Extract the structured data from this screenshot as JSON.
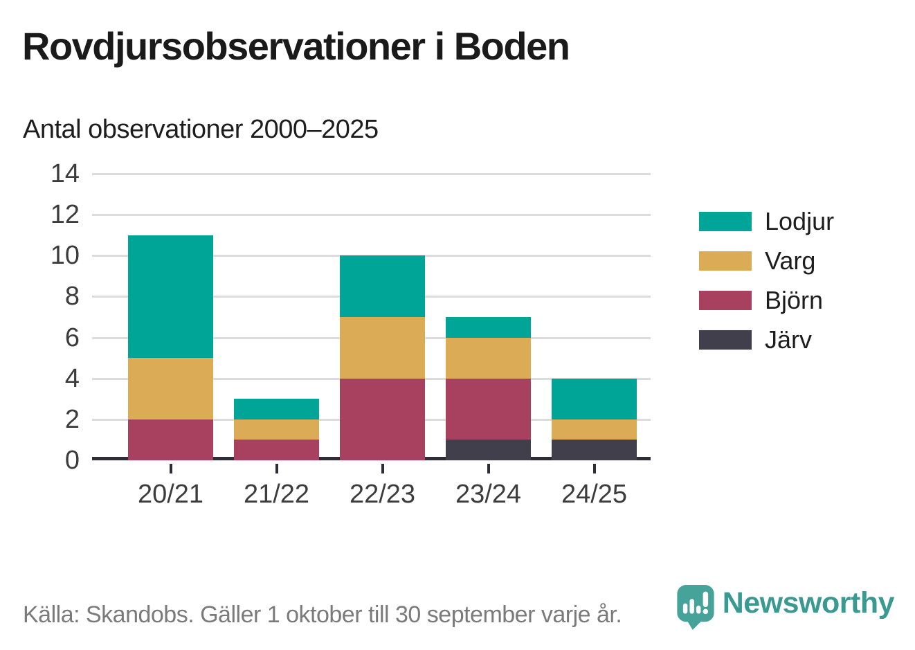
{
  "header": {
    "title": "Rovdjursobservationer i Boden",
    "subtitle": "Antal observationer 2000–2025"
  },
  "chart_data": {
    "type": "bar",
    "stacked": true,
    "title": "Rovdjursobservationer i Boden",
    "subtitle": "Antal observationer 2000–2025",
    "categories": [
      "20/21",
      "21/22",
      "22/23",
      "23/24",
      "24/25"
    ],
    "series": [
      {
        "name": "Järv",
        "color": "#413f4c",
        "values": [
          0,
          0,
          0,
          1,
          1
        ]
      },
      {
        "name": "Björn",
        "color": "#a8415f",
        "values": [
          2,
          1,
          4,
          3,
          0
        ]
      },
      {
        "name": "Varg",
        "color": "#dbac55",
        "values": [
          3,
          1,
          3,
          2,
          1
        ]
      },
      {
        "name": "Lodjur",
        "color": "#00a598",
        "values": [
          6,
          1,
          3,
          1,
          2
        ]
      }
    ],
    "stack_order_note": "series listed bottom-to-top of each stack",
    "totals": [
      11,
      3,
      10,
      7,
      4
    ],
    "legend": [
      {
        "label": "Lodjur",
        "color": "#00a598"
      },
      {
        "label": "Varg",
        "color": "#dbac55"
      },
      {
        "label": "Björn",
        "color": "#a8415f"
      },
      {
        "label": "Järv",
        "color": "#413f4c"
      }
    ],
    "legend_position": "right",
    "xlabel": "",
    "ylabel": "",
    "ylim": [
      0,
      14
    ],
    "yticks": [
      0,
      2,
      4,
      6,
      8,
      10,
      12,
      14
    ],
    "grid": "horizontal",
    "grid_color": "#dcdcdc",
    "axis_color": "#2e2d37",
    "tick_label_color": "#3c3c3c"
  },
  "footer": {
    "source_text": "Källa: Skandobs. Gäller 1 oktober till 30 september varje år.",
    "brand": {
      "name": "Newsworthy",
      "color": "#3a9a92",
      "icon": "speech-bubble-bar-chart-icon"
    }
  }
}
